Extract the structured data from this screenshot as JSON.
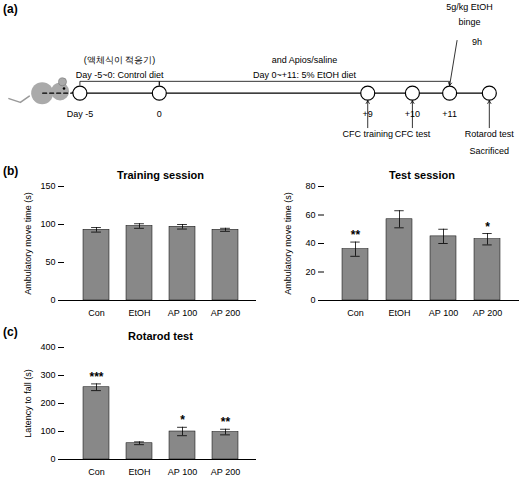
{
  "chart_data": [
    {
      "type": "timeline",
      "panel_label": "(a)",
      "day_labels": [
        "Day -5",
        "0",
        "+9",
        "+10",
        "+11"
      ],
      "periods": [
        [
          "(액체식이 적응기)",
          "Day -5~0: Control diet"
        ],
        [
          "and Apios/saline",
          "Day 0~+11: 5% EtOH diet"
        ]
      ],
      "binge": [
        "5g/kg EtOH",
        "binge"
      ],
      "binge_time": "9h",
      "events": [
        [
          "CFC training"
        ],
        [
          "CFC test"
        ],
        [
          "Rotarod test",
          "Sacrificed"
        ]
      ]
    },
    {
      "type": "bar",
      "panel_label": "(b)",
      "title": "Training session",
      "ylabel": "Ambulatory move time (s)",
      "categories": [
        "Con",
        "EtOH",
        "AP 100",
        "AP 200"
      ],
      "values": [
        93,
        98,
        97,
        93
      ],
      "errors": [
        3,
        3,
        3,
        2
      ],
      "ylim": [
        0,
        150
      ],
      "yticks": [
        0,
        50,
        100,
        150
      ],
      "color": "#888888"
    },
    {
      "type": "bar",
      "title": "Test session",
      "ylabel": "Ambulatory move time (s)",
      "categories": [
        "Con",
        "EtOH",
        "AP 100",
        "AP 200"
      ],
      "values": [
        36,
        57,
        45,
        43
      ],
      "errors": [
        5,
        6,
        5,
        4
      ],
      "ylim": [
        0,
        80
      ],
      "yticks": [
        0,
        20,
        40,
        60,
        80
      ],
      "color": "#888888",
      "significance": [
        "**",
        null,
        null,
        "*"
      ]
    },
    {
      "type": "bar",
      "panel_label": "(c)",
      "title": "Rotarod test",
      "ylabel": "Latency to fall (s)",
      "categories": [
        "Con",
        "EtOH",
        "AP 100",
        "AP 200"
      ],
      "values": [
        258,
        58,
        100,
        98
      ],
      "errors": [
        12,
        5,
        15,
        10
      ],
      "ylim": [
        0,
        400
      ],
      "yticks": [
        0,
        100,
        200,
        300,
        400
      ],
      "color": "#888888",
      "significance": [
        "***",
        null,
        "*",
        "**"
      ]
    }
  ]
}
